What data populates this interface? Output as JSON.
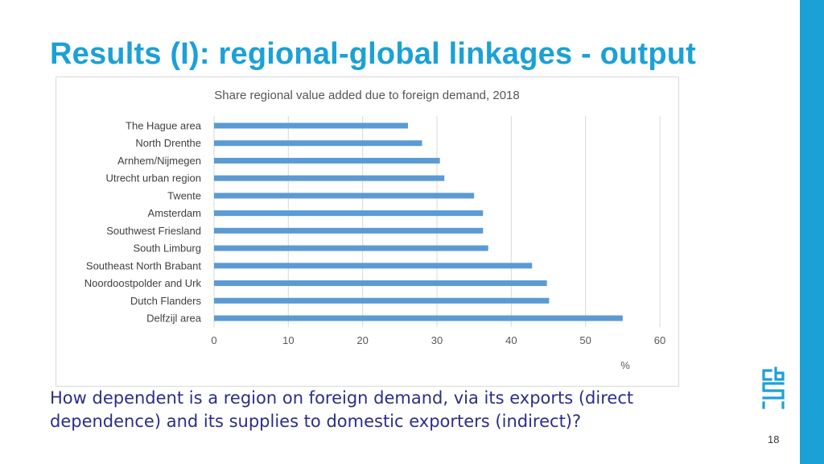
{
  "slide": {
    "title": "Results (I): regional-global linkages - output",
    "subtitle": "How dependent is a region on foreign demand, via its exports (direct dependence) and its supplies to domestic exporters (indirect)?",
    "page_number": "18",
    "accent_color": "#1ba1d6",
    "text_color": "#2b2e8a",
    "logo_icon": "cbs-logo"
  },
  "chart_data": {
    "type": "bar",
    "orientation": "horizontal",
    "title": "Share regional value added due to foreign demand, 2018",
    "xlabel": "%",
    "ylabel": "",
    "categories": [
      "The Hague area",
      "North Drenthe",
      "Arnhem/Nijmegen",
      "Utrecht urban region",
      "Twente",
      "Amsterdam",
      "Southwest Friesland",
      "South Limburg",
      "Southeast North Brabant",
      "Noordoostpolder and Urk",
      "Dutch Flanders",
      "Delfzijl area"
    ],
    "values": [
      26.1,
      28.0,
      30.4,
      31.0,
      35.0,
      36.2,
      36.2,
      36.9,
      42.8,
      44.8,
      45.1,
      55.0
    ],
    "xlim": [
      0,
      60
    ],
    "ticks": [
      "0",
      "10",
      "20",
      "30",
      "40",
      "50",
      "60"
    ],
    "grid": true,
    "legend": "none",
    "bar_color": "#5b9bd5"
  }
}
